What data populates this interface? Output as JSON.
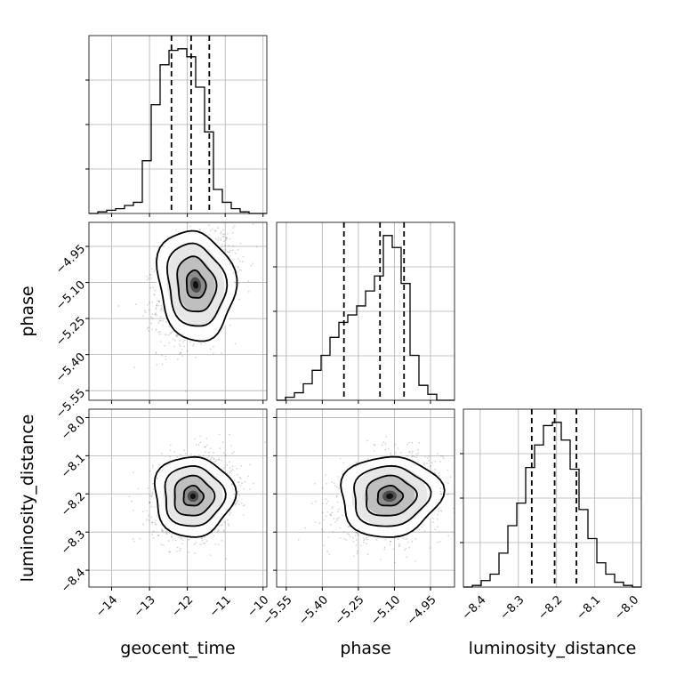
{
  "chart_data": {
    "type": "corner",
    "parameters": [
      "geocent_time",
      "phase",
      "luminosity_distance"
    ],
    "axis_labels": {
      "x": [
        "geocent_time",
        "phase",
        "luminosity_distance"
      ],
      "y": [
        "phase",
        "luminosity_distance"
      ]
    },
    "ranges": {
      "geocent_time": [
        -14.6,
        -9.9
      ],
      "phase": [
        -5.59,
        -4.85
      ],
      "luminosity_distance": [
        -8.444,
        -7.978
      ]
    },
    "ticks": {
      "geocent_time": {
        "values": [
          -14,
          -13,
          -12,
          -11,
          -10
        ],
        "labels": [
          "−14",
          "−13",
          "−12",
          "−11",
          "−10"
        ]
      },
      "phase": {
        "values": [
          -5.55,
          -5.4,
          -5.25,
          -5.1,
          -4.95
        ],
        "labels": [
          "−5.55",
          "−5.40",
          "−5.25",
          "−5.10",
          "−4.95"
        ]
      },
      "luminosity_distance": {
        "values": [
          -8.4,
          -8.3,
          -8.2,
          -8.1,
          -8.0
        ],
        "labels": [
          "−8.4",
          "−8.3",
          "−8.2",
          "−8.1",
          "−8.0"
        ]
      }
    },
    "quantiles": {
      "geocent_time": [
        -12.42,
        -11.9,
        -11.42
      ],
      "phase": [
        -5.31,
        -5.16,
        -5.06
      ],
      "luminosity_distance": [
        -8.265,
        -8.205,
        -8.148
      ]
    },
    "histograms": {
      "geocent_time": {
        "edges": [
          -14.6,
          -14.365,
          -14.13,
          -13.895,
          -13.66,
          -13.425,
          -13.19,
          -12.955,
          -12.72,
          -12.485,
          -12.25,
          -12.015,
          -11.78,
          -11.545,
          -11.31,
          -11.075,
          -10.84,
          -10.605,
          -10.37,
          -10.135,
          -9.9
        ],
        "counts": [
          0,
          1,
          2,
          3,
          5,
          7,
          33,
          68,
          93,
          102,
          103,
          98,
          79,
          51,
          15,
          7,
          3,
          1,
          0,
          0
        ]
      },
      "phase": {
        "edges": [
          -5.59,
          -5.553,
          -5.516,
          -5.479,
          -5.442,
          -5.405,
          -5.368,
          -5.331,
          -5.294,
          -5.257,
          -5.22,
          -5.183,
          -5.146,
          -5.109,
          -5.072,
          -5.035,
          -4.998,
          -4.961,
          -4.924,
          -4.887,
          -4.85
        ],
        "counts": [
          0,
          2,
          5,
          11,
          20,
          30,
          42,
          52,
          57,
          63,
          73,
          83,
          110,
          102,
          78,
          30,
          10,
          4,
          0,
          0
        ]
      },
      "luminosity_distance": {
        "edges": [
          -8.444,
          -8.4207,
          -8.3974,
          -8.3741,
          -8.3508,
          -8.3275,
          -8.3042,
          -8.2809,
          -8.2576,
          -8.2343,
          -8.211,
          -8.1877,
          -8.1644,
          -8.1411,
          -8.1178,
          -8.0945,
          -8.0712,
          -8.0479,
          -8.0246,
          -8.0013,
          -7.978
        ],
        "counts": [
          0,
          1,
          4,
          8,
          21,
          38,
          52,
          74,
          88,
          100,
          102,
          91,
          73,
          48,
          30,
          15,
          8,
          3,
          1,
          0
        ]
      }
    },
    "joint": [
      {
        "x": "geocent_time",
        "y": "phase",
        "center": [
          -11.78,
          -5.11
        ],
        "sigma": [
          0.48,
          0.11
        ],
        "rho": 0.3
      },
      {
        "x": "geocent_time",
        "y": "luminosity_distance",
        "center": [
          -11.85,
          -8.206
        ],
        "sigma": [
          0.5,
          0.05
        ],
        "rho": 0.15
      },
      {
        "x": "phase",
        "y": "luminosity_distance",
        "center": [
          -5.12,
          -8.206
        ],
        "sigma": [
          0.1,
          0.05
        ],
        "rho": 0.2
      }
    ],
    "contour_levels": [
      0.5,
      1.0,
      1.5,
      2.0
    ]
  }
}
